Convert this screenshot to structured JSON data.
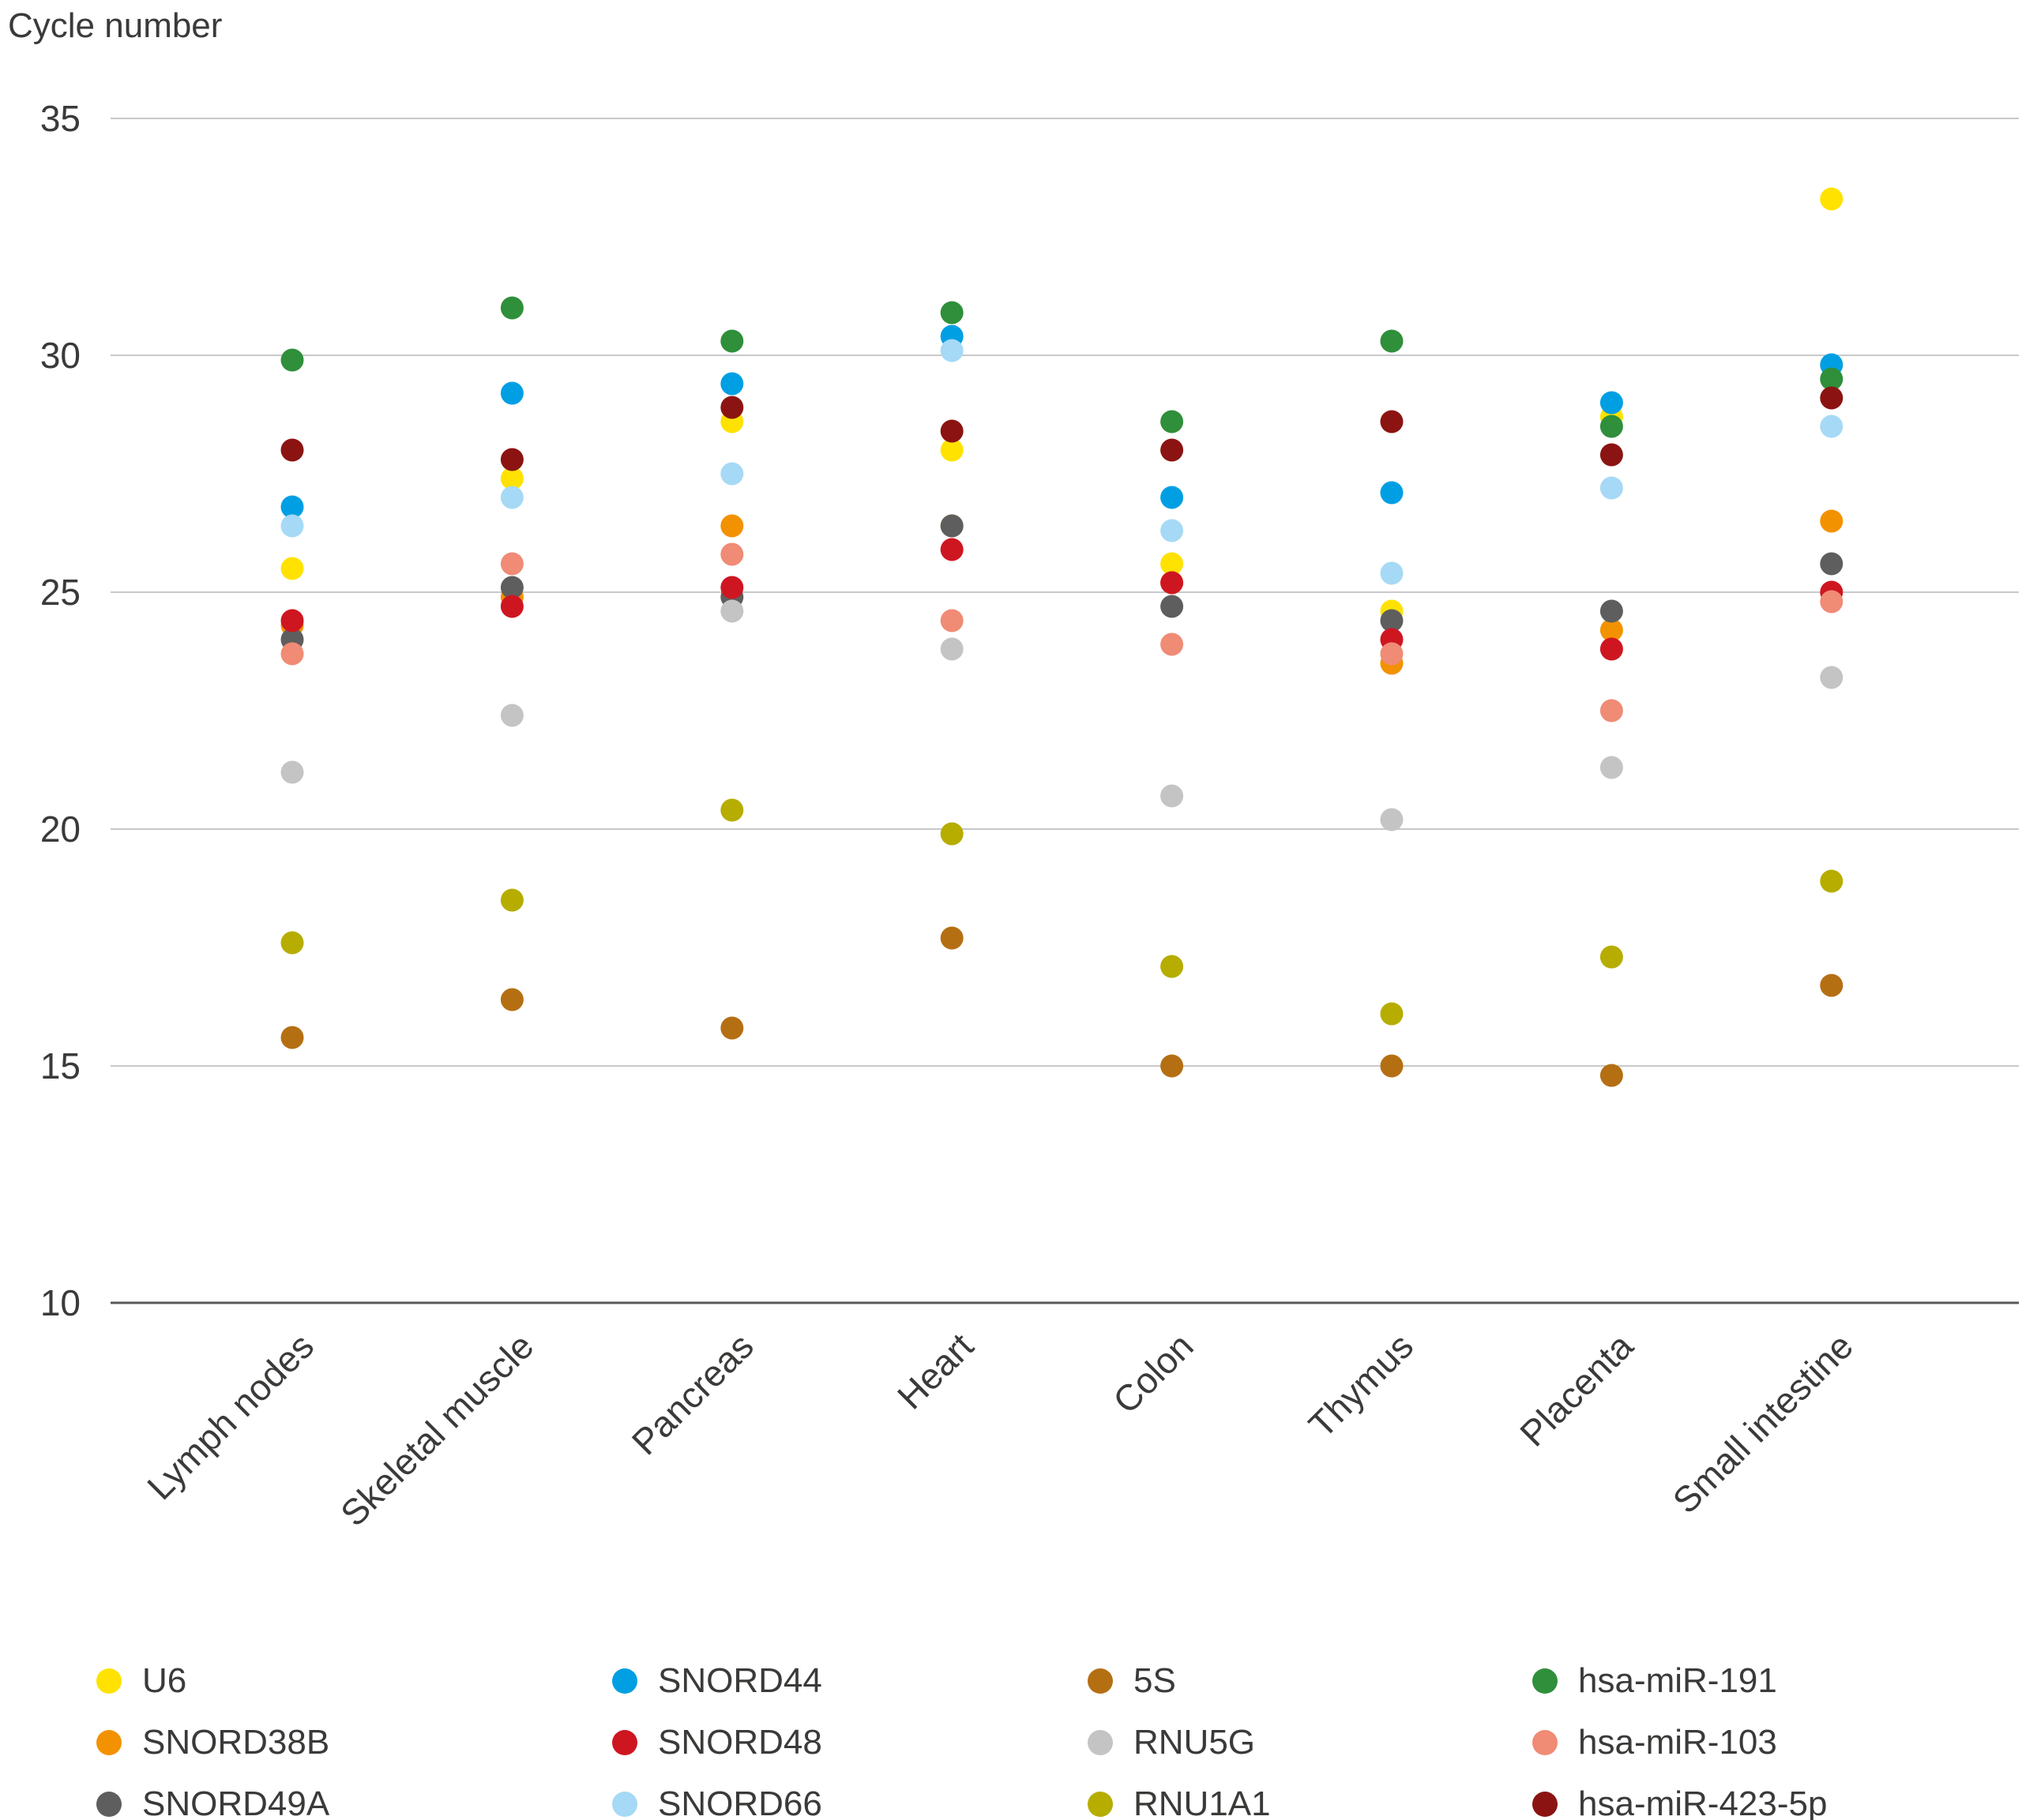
{
  "title": "Cycle number",
  "colors": {
    "grid": "#C8C8CC",
    "axis": "#58585A",
    "text": "#3A3A39"
  },
  "chart_data": {
    "type": "scatter",
    "title": "Cycle number",
    "ylabel": "Cycle number",
    "xlabel": "",
    "ylim": [
      10,
      35
    ],
    "yticks": [
      35,
      30,
      25,
      20,
      15,
      10
    ],
    "grid": "horizontal",
    "legend_position": "bottom",
    "categories": [
      "Lymph nodes",
      "Skeletal muscle",
      "Pancreas",
      "Heart",
      "Colon",
      "Thymus",
      "Placenta",
      "Small intestine"
    ],
    "series": [
      {
        "name": "U6",
        "color": "#FFE200",
        "values": [
          25.5,
          27.4,
          28.6,
          28.0,
          25.6,
          24.6,
          28.7,
          33.3
        ]
      },
      {
        "name": "SNORD38B",
        "color": "#F39200",
        "values": [
          24.3,
          24.9,
          26.4,
          26.4,
          25.2,
          23.5,
          24.2,
          26.5
        ]
      },
      {
        "name": "SNORD49A",
        "color": "#5F5E5E",
        "values": [
          24.0,
          25.1,
          24.9,
          26.4,
          24.7,
          24.4,
          24.6,
          25.6
        ]
      },
      {
        "name": "SNORD44",
        "color": "#009FE3",
        "values": [
          26.8,
          29.2,
          29.4,
          30.4,
          27.0,
          27.1,
          29.0,
          29.8
        ]
      },
      {
        "name": "SNORD48",
        "color": "#CE1621",
        "values": [
          24.4,
          24.7,
          25.1,
          25.9,
          25.2,
          24.0,
          23.8,
          25.0
        ]
      },
      {
        "name": "SNORD66",
        "color": "#A6D9F5",
        "values": [
          26.4,
          27.0,
          27.5,
          30.1,
          26.3,
          25.4,
          27.2,
          28.5
        ]
      },
      {
        "name": "5S",
        "color": "#B56F13",
        "values": [
          15.6,
          16.4,
          15.8,
          17.7,
          15.0,
          15.0,
          14.8,
          16.7
        ]
      },
      {
        "name": "RNU5G",
        "color": "#C5C4C4",
        "values": [
          21.2,
          22.4,
          24.6,
          23.8,
          20.7,
          20.2,
          21.3,
          23.2
        ]
      },
      {
        "name": "RNU1A1",
        "color": "#B6AD00",
        "values": [
          17.6,
          18.5,
          20.4,
          19.9,
          17.1,
          16.1,
          17.3,
          18.9
        ]
      },
      {
        "name": "hsa-miR-191",
        "color": "#2F8F3A",
        "values": [
          29.9,
          31.0,
          30.3,
          30.9,
          28.6,
          30.3,
          28.5,
          29.5
        ]
      },
      {
        "name": "hsa-miR-103",
        "color": "#F08B75",
        "values": [
          23.7,
          25.6,
          25.8,
          24.4,
          23.9,
          23.7,
          22.5,
          24.8
        ]
      },
      {
        "name": "hsa-miR-423-5p",
        "color": "#8B1412",
        "values": [
          28.0,
          27.8,
          28.9,
          28.4,
          28.0,
          28.6,
          27.9,
          29.1
        ]
      }
    ]
  }
}
